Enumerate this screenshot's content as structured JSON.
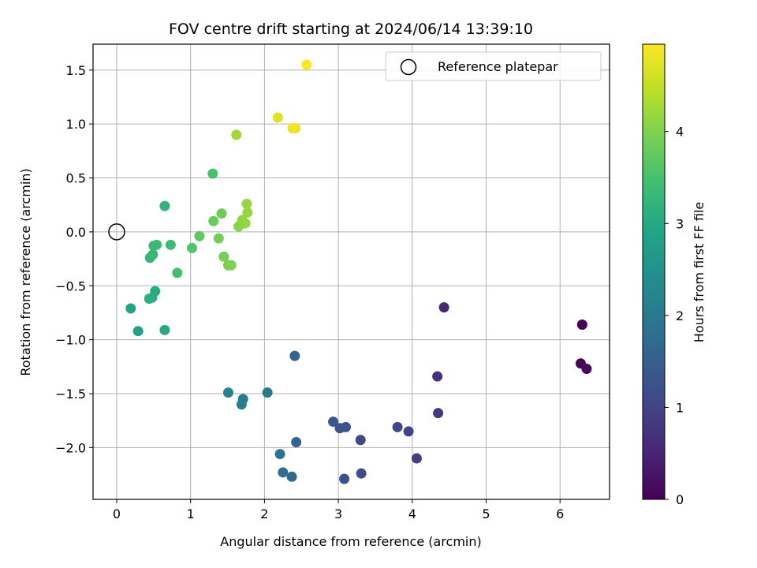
{
  "chart_data": {
    "type": "scatter",
    "title": "FOV centre drift starting at 2024/06/14 13:39:10",
    "xlabel": "Angular distance from reference (arcmin)",
    "ylabel": "Rotation from reference (arcmin)",
    "xlim": [
      -0.32,
      6.67
    ],
    "ylim": [
      -2.48,
      1.74
    ],
    "xticks": [
      "0",
      "1",
      "2",
      "3",
      "4",
      "5",
      "6"
    ],
    "yticks": [
      "1.5",
      "1.0",
      "0.5",
      "0.0",
      "−0.5",
      "−1.0",
      "−1.5",
      "−2.0"
    ],
    "grid": true,
    "legend": {
      "placement": "top-right",
      "entries": [
        "Reference platepar"
      ]
    },
    "reference_point": {
      "x": 0.0,
      "y": 0.0
    },
    "colorbar": {
      "label": "Hours from first FF file",
      "range": [
        0,
        4.95
      ],
      "ticks": [
        "0",
        "1",
        "2",
        "3",
        "4"
      ],
      "colormap": "viridis"
    },
    "points": [
      {
        "x": 6.3,
        "y": -0.86,
        "c": 0.0
      },
      {
        "x": 6.28,
        "y": -1.22,
        "c": 0.05
      },
      {
        "x": 6.36,
        "y": -1.27,
        "c": 0.1
      },
      {
        "x": 4.43,
        "y": -0.7,
        "c": 0.55
      },
      {
        "x": 4.34,
        "y": -1.34,
        "c": 0.7
      },
      {
        "x": 4.35,
        "y": -1.68,
        "c": 0.8
      },
      {
        "x": 4.06,
        "y": -2.1,
        "c": 0.9
      },
      {
        "x": 3.95,
        "y": -1.85,
        "c": 1.0
      },
      {
        "x": 3.8,
        "y": -1.81,
        "c": 1.05
      },
      {
        "x": 3.3,
        "y": -1.93,
        "c": 1.1
      },
      {
        "x": 3.31,
        "y": -2.24,
        "c": 1.15
      },
      {
        "x": 3.08,
        "y": -2.29,
        "c": 1.2
      },
      {
        "x": 3.1,
        "y": -1.81,
        "c": 1.25
      },
      {
        "x": 3.02,
        "y": -1.82,
        "c": 1.3
      },
      {
        "x": 2.93,
        "y": -1.76,
        "c": 1.35
      },
      {
        "x": 2.43,
        "y": -1.95,
        "c": 1.55
      },
      {
        "x": 2.41,
        "y": -1.15,
        "c": 1.6
      },
      {
        "x": 2.37,
        "y": -2.27,
        "c": 1.7
      },
      {
        "x": 2.25,
        "y": -2.23,
        "c": 1.8
      },
      {
        "x": 2.21,
        "y": -2.06,
        "c": 1.9
      },
      {
        "x": 2.04,
        "y": -1.49,
        "c": 2.0
      },
      {
        "x": 1.71,
        "y": -1.55,
        "c": 2.05
      },
      {
        "x": 1.69,
        "y": -1.6,
        "c": 2.1
      },
      {
        "x": 1.51,
        "y": -1.49,
        "c": 2.2
      },
      {
        "x": 0.29,
        "y": -0.92,
        "c": 2.85
      },
      {
        "x": 0.19,
        "y": -0.71,
        "c": 2.9
      },
      {
        "x": 0.65,
        "y": -0.91,
        "c": 3.0
      },
      {
        "x": 0.52,
        "y": -0.55,
        "c": 3.05
      },
      {
        "x": 0.48,
        "y": -0.61,
        "c": 3.1
      },
      {
        "x": 0.44,
        "y": -0.62,
        "c": 3.12
      },
      {
        "x": 0.65,
        "y": 0.24,
        "c": 3.2
      },
      {
        "x": 0.45,
        "y": -0.24,
        "c": 3.25
      },
      {
        "x": 0.49,
        "y": -0.21,
        "c": 3.28
      },
      {
        "x": 0.5,
        "y": -0.13,
        "c": 3.3
      },
      {
        "x": 0.54,
        "y": -0.12,
        "c": 3.32
      },
      {
        "x": 0.73,
        "y": -0.12,
        "c": 3.35
      },
      {
        "x": 0.82,
        "y": -0.38,
        "c": 3.45
      },
      {
        "x": 1.3,
        "y": 0.54,
        "c": 3.5
      },
      {
        "x": 1.02,
        "y": -0.15,
        "c": 3.6
      },
      {
        "x": 1.12,
        "y": -0.04,
        "c": 3.7
      },
      {
        "x": 1.31,
        "y": 0.1,
        "c": 3.8
      },
      {
        "x": 1.42,
        "y": 0.17,
        "c": 3.85
      },
      {
        "x": 1.38,
        "y": -0.06,
        "c": 3.88
      },
      {
        "x": 1.45,
        "y": -0.23,
        "c": 3.9
      },
      {
        "x": 1.51,
        "y": -0.31,
        "c": 3.95
      },
      {
        "x": 1.55,
        "y": -0.31,
        "c": 3.98
      },
      {
        "x": 1.65,
        "y": 0.05,
        "c": 4.05
      },
      {
        "x": 1.68,
        "y": 0.07,
        "c": 4.08
      },
      {
        "x": 1.7,
        "y": 0.11,
        "c": 4.1
      },
      {
        "x": 1.74,
        "y": 0.08,
        "c": 4.12
      },
      {
        "x": 1.77,
        "y": 0.18,
        "c": 4.15
      },
      {
        "x": 1.76,
        "y": 0.26,
        "c": 4.18
      },
      {
        "x": 1.62,
        "y": 0.9,
        "c": 4.25
      },
      {
        "x": 2.18,
        "y": 1.06,
        "c": 4.7
      },
      {
        "x": 2.38,
        "y": 0.96,
        "c": 4.8
      },
      {
        "x": 2.42,
        "y": 0.96,
        "c": 4.85
      },
      {
        "x": 2.57,
        "y": 1.55,
        "c": 4.95
      }
    ]
  }
}
